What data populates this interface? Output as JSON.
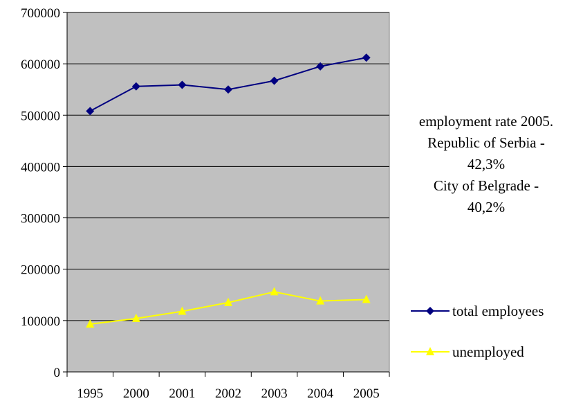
{
  "chart_data": {
    "type": "line",
    "categories": [
      "1995",
      "2000",
      "2001",
      "2002",
      "2003",
      "2004",
      "2005"
    ],
    "series": [
      {
        "name": "total employees",
        "values": [
          508000,
          556000,
          559000,
          550000,
          567000,
          595000,
          612000
        ],
        "color": "#000080",
        "marker": "diamond"
      },
      {
        "name": "unemployed",
        "values": [
          93000,
          104000,
          118000,
          135000,
          156000,
          138000,
          141000
        ],
        "color": "#FFFF00",
        "marker": "triangle"
      }
    ],
    "ylim": [
      0,
      700000
    ],
    "y_ticks": [
      "0",
      "100000",
      "200000",
      "300000",
      "400000",
      "500000",
      "600000",
      "700000"
    ],
    "grid": true,
    "plot_background": "#C0C0C0",
    "legend_position": "right",
    "annotation": {
      "lines": [
        "employment rate 2005.",
        "Republic of Serbia -",
        "42,3%",
        "City of Belgrade -",
        "40,2%"
      ]
    }
  }
}
